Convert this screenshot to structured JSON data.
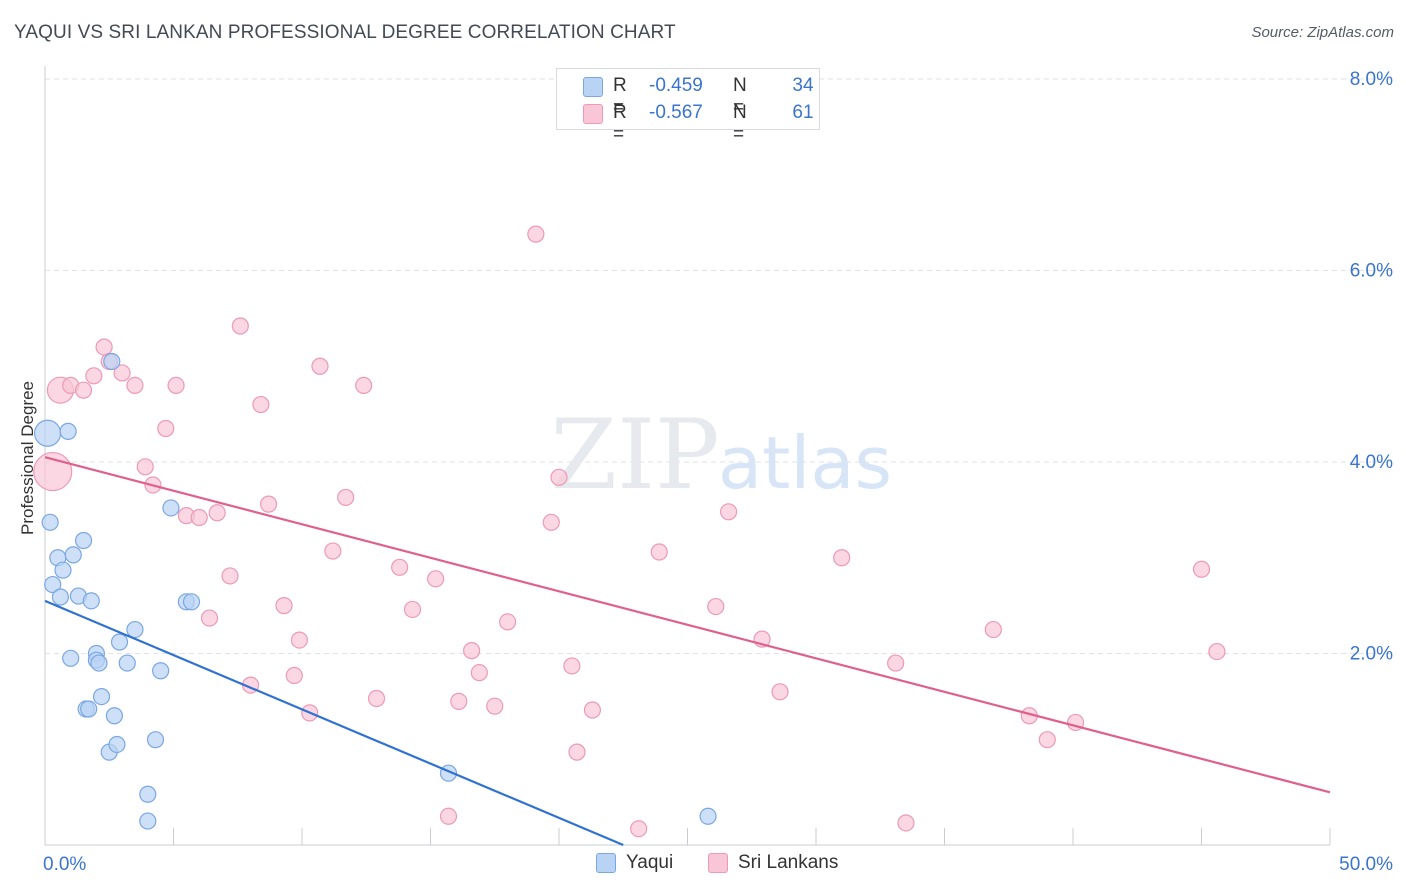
{
  "header": {
    "title": "YAQUI VS SRI LANKAN PROFESSIONAL DEGREE CORRELATION CHART",
    "source": "Source: ZipAtlas.com"
  },
  "watermark": {
    "zip": "ZIP",
    "atlas": "atlas"
  },
  "colors": {
    "yaqui_fill": "#b9d3f5",
    "yaqui_stroke": "#7aa7e2",
    "yaqui_line": "#2f72d2",
    "sri_fill": "#f8c6d6",
    "sri_stroke": "#ec9ab5",
    "sri_line": "#e0608c",
    "accent_text": "#3a74d0",
    "grid": "#dfe2e6"
  },
  "legend_stats": [
    {
      "r_label": "R =",
      "r_value": "-0.459",
      "n_label": "N =",
      "n_value": "34"
    },
    {
      "r_label": "R =",
      "r_value": "-0.567",
      "n_label": "N =",
      "n_value": "61"
    }
  ],
  "legend_bottom": [
    {
      "label": "Yaqui"
    },
    {
      "label": "Sri Lankans"
    }
  ],
  "chart_data": {
    "type": "scatter",
    "title": "YAQUI VS SRI LANKAN PROFESSIONAL DEGREE CORRELATION CHART",
    "xlabel": "",
    "ylabel": "Professional Degree",
    "xlim": [
      0,
      50
    ],
    "ylim": [
      0,
      8.0
    ],
    "x_tick_labels": [
      "0.0%",
      "50.0%"
    ],
    "y_ticks": [
      2.0,
      4.0,
      6.0,
      8.0
    ],
    "y_tick_labels": [
      "2.0%",
      "4.0%",
      "6.0%",
      "8.0%"
    ],
    "grid": true,
    "legend_position": "top-center",
    "series": [
      {
        "name": "Yaqui",
        "R": -0.459,
        "N": 34,
        "trend": [
          [
            0,
            2.55
          ],
          [
            22.5,
            0.0
          ]
        ],
        "points": [
          [
            0.1,
            4.3,
            2
          ],
          [
            0.2,
            3.37,
            1
          ],
          [
            0.3,
            2.72,
            1
          ],
          [
            0.5,
            3.0,
            1
          ],
          [
            0.6,
            2.59,
            1
          ],
          [
            0.7,
            2.87,
            1
          ],
          [
            0.9,
            4.32,
            1
          ],
          [
            1.0,
            1.95,
            1
          ],
          [
            1.1,
            3.03,
            1
          ],
          [
            1.3,
            2.6,
            1
          ],
          [
            1.5,
            3.18,
            1
          ],
          [
            1.6,
            1.42,
            1
          ],
          [
            1.7,
            1.42,
            1
          ],
          [
            1.8,
            2.55,
            1
          ],
          [
            2.0,
            2.0,
            1
          ],
          [
            2.0,
            1.93,
            1
          ],
          [
            2.1,
            1.9,
            1
          ],
          [
            2.2,
            1.55,
            1
          ],
          [
            2.5,
            0.97,
            1
          ],
          [
            2.7,
            1.35,
            1
          ],
          [
            2.8,
            1.05,
            1
          ],
          [
            2.9,
            2.12,
            1
          ],
          [
            3.2,
            1.9,
            1
          ],
          [
            3.5,
            2.25,
            1
          ],
          [
            4.0,
            0.53,
            1
          ],
          [
            4.0,
            0.25,
            1
          ],
          [
            4.3,
            1.1,
            1
          ],
          [
            4.5,
            1.82,
            1
          ],
          [
            4.9,
            3.52,
            1
          ],
          [
            5.5,
            2.54,
            1
          ],
          [
            5.7,
            2.54,
            1
          ],
          [
            2.6,
            5.05,
            1
          ],
          [
            15.7,
            0.75,
            1
          ],
          [
            25.8,
            0.3,
            1
          ]
        ]
      },
      {
        "name": "Sri Lankans",
        "R": -0.567,
        "N": 61,
        "trend": [
          [
            0,
            4.05
          ],
          [
            50,
            0.55
          ]
        ],
        "points": [
          [
            0.3,
            3.9,
            3
          ],
          [
            0.6,
            4.75,
            2
          ],
          [
            1.0,
            4.8,
            1
          ],
          [
            1.5,
            4.75,
            1
          ],
          [
            1.9,
            4.9,
            1
          ],
          [
            2.3,
            5.2,
            1
          ],
          [
            2.5,
            5.05,
            1
          ],
          [
            3.0,
            4.93,
            1
          ],
          [
            3.5,
            4.8,
            1
          ],
          [
            3.9,
            3.95,
            1
          ],
          [
            4.2,
            3.76,
            1
          ],
          [
            4.7,
            4.35,
            1
          ],
          [
            5.1,
            4.8,
            1
          ],
          [
            5.5,
            3.44,
            1
          ],
          [
            6.0,
            3.42,
            1
          ],
          [
            6.4,
            2.37,
            1
          ],
          [
            6.7,
            3.47,
            1
          ],
          [
            7.2,
            2.81,
            1
          ],
          [
            7.6,
            5.42,
            1
          ],
          [
            8.0,
            1.67,
            1
          ],
          [
            8.4,
            4.6,
            1
          ],
          [
            8.7,
            3.56,
            1
          ],
          [
            9.3,
            2.5,
            1
          ],
          [
            9.7,
            1.77,
            1
          ],
          [
            9.9,
            2.14,
            1
          ],
          [
            10.3,
            1.38,
            1
          ],
          [
            10.7,
            5.0,
            1
          ],
          [
            11.2,
            3.07,
            1
          ],
          [
            11.7,
            3.63,
            1
          ],
          [
            12.4,
            4.8,
            1
          ],
          [
            12.9,
            1.53,
            1
          ],
          [
            13.8,
            2.9,
            1
          ],
          [
            14.3,
            2.46,
            1
          ],
          [
            15.2,
            2.78,
            1
          ],
          [
            15.7,
            0.3,
            1
          ],
          [
            16.1,
            1.5,
            1
          ],
          [
            16.6,
            2.03,
            1
          ],
          [
            16.9,
            1.8,
            1
          ],
          [
            17.5,
            1.45,
            1
          ],
          [
            18.0,
            2.33,
            1
          ],
          [
            19.1,
            6.38,
            1
          ],
          [
            19.7,
            3.37,
            1
          ],
          [
            20.0,
            3.84,
            1
          ],
          [
            20.5,
            1.87,
            1
          ],
          [
            20.7,
            0.97,
            1
          ],
          [
            21.3,
            1.41,
            1
          ],
          [
            23.1,
            0.17,
            1
          ],
          [
            23.9,
            3.06,
            1
          ],
          [
            26.1,
            2.49,
            1
          ],
          [
            26.6,
            3.48,
            1
          ],
          [
            27.9,
            2.15,
            1
          ],
          [
            28.6,
            1.6,
            1
          ],
          [
            31.0,
            3.0,
            1
          ],
          [
            33.1,
            1.9,
            1
          ],
          [
            33.5,
            0.23,
            1
          ],
          [
            36.9,
            2.25,
            1
          ],
          [
            38.3,
            1.35,
            1
          ],
          [
            39.0,
            1.1,
            1
          ],
          [
            40.1,
            1.28,
            1
          ],
          [
            45.0,
            2.88,
            1
          ],
          [
            45.6,
            2.02,
            1
          ]
        ]
      }
    ]
  }
}
